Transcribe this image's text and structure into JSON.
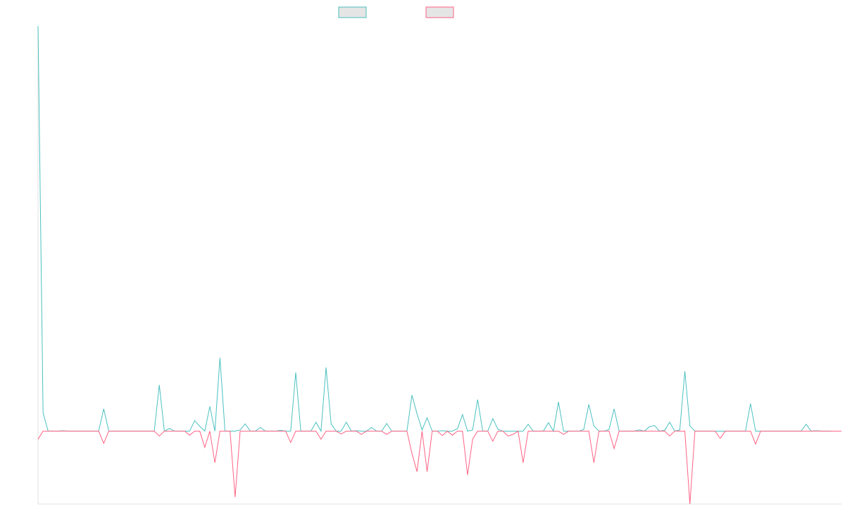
{
  "chart_data": {
    "type": "line",
    "legend_position": "top-center",
    "grid": false,
    "x_count": 160,
    "ylim": [
      -0.18,
      1.0
    ],
    "series": [
      {
        "color": "#4bc0c0",
        "fill": "#e5e5e5",
        "values": [
          1.0,
          0.045,
          0,
          0,
          0,
          0.001,
          0,
          0,
          0,
          0,
          0,
          0,
          0,
          0.055,
          0,
          0,
          0,
          0,
          0,
          0,
          0,
          0,
          0,
          0,
          0.114,
          0,
          0.007,
          0,
          0,
          0,
          0,
          0.026,
          0.012,
          0,
          0.061,
          0,
          0.181,
          0,
          0,
          0,
          0.003,
          0.018,
          0,
          0,
          0.009,
          0,
          0,
          0,
          0.002,
          0,
          0,
          0.145,
          0,
          0,
          0,
          0.022,
          0,
          0.157,
          0.018,
          0,
          0,
          0.022,
          0,
          0.001,
          0,
          0,
          0.009,
          0,
          0,
          0.019,
          0,
          0,
          0,
          0,
          0.089,
          0.043,
          0.003,
          0.033,
          0,
          0,
          0.001,
          0,
          0,
          0.006,
          0.041,
          0,
          0.003,
          0.078,
          0,
          0,
          0.031,
          0.005,
          0,
          0,
          0,
          0,
          0,
          0.017,
          0,
          0,
          0,
          0.021,
          0,
          0.072,
          0,
          0,
          0,
          0,
          0.004,
          0.066,
          0.013,
          0,
          0,
          0.004,
          0.055,
          0,
          0,
          0,
          0,
          0.003,
          0,
          0.011,
          0.014,
          0,
          0.002,
          0.022,
          0,
          0.003,
          0.148,
          0.013,
          0,
          0,
          0,
          0,
          0,
          0,
          0,
          0,
          0,
          0,
          0,
          0.068,
          0,
          0,
          0,
          0,
          0,
          0,
          0,
          0,
          0,
          0,
          0.017,
          0,
          0.001,
          0,
          0,
          0
        ]
      },
      {
        "color": "#ff6384",
        "fill": "#e5e5e5",
        "values": [
          -0.02,
          0,
          0,
          0,
          0,
          0,
          0,
          0,
          0,
          0,
          0,
          0,
          0,
          -0.03,
          0,
          0,
          0,
          0,
          0,
          0,
          0,
          0,
          0,
          0,
          -0.012,
          0,
          0,
          0,
          0,
          0,
          -0.01,
          0,
          0,
          -0.04,
          0,
          -0.078,
          0,
          0,
          0,
          -0.163,
          0,
          0,
          0,
          0,
          0,
          0,
          0,
          0,
          0,
          0,
          -0.028,
          0,
          0,
          0,
          0,
          0,
          -0.02,
          0,
          0,
          0,
          -0.007,
          0,
          0,
          0,
          -0.008,
          0,
          0,
          0,
          0,
          -0.008,
          0,
          0,
          0,
          0,
          -0.055,
          -0.1,
          0,
          -0.1,
          0,
          0,
          -0.011,
          0,
          -0.01,
          0,
          0,
          -0.108,
          -0.02,
          0,
          0,
          0,
          -0.025,
          0,
          0,
          -0.012,
          -0.008,
          0,
          -0.078,
          0,
          0,
          0,
          0,
          0,
          0,
          0,
          -0.008,
          0,
          0,
          0,
          0,
          0,
          -0.078,
          0,
          0,
          0,
          -0.043,
          0,
          0,
          0,
          0,
          0,
          0,
          0,
          0,
          0,
          0,
          -0.012,
          0,
          0,
          0,
          -0.18,
          0,
          0,
          0,
          0,
          0,
          -0.018,
          0,
          0,
          0,
          0,
          0,
          0,
          -0.032,
          0,
          0,
          0,
          0,
          0,
          0,
          0,
          0,
          0,
          0,
          0,
          0,
          0,
          0,
          0,
          0,
          0
        ]
      }
    ]
  }
}
